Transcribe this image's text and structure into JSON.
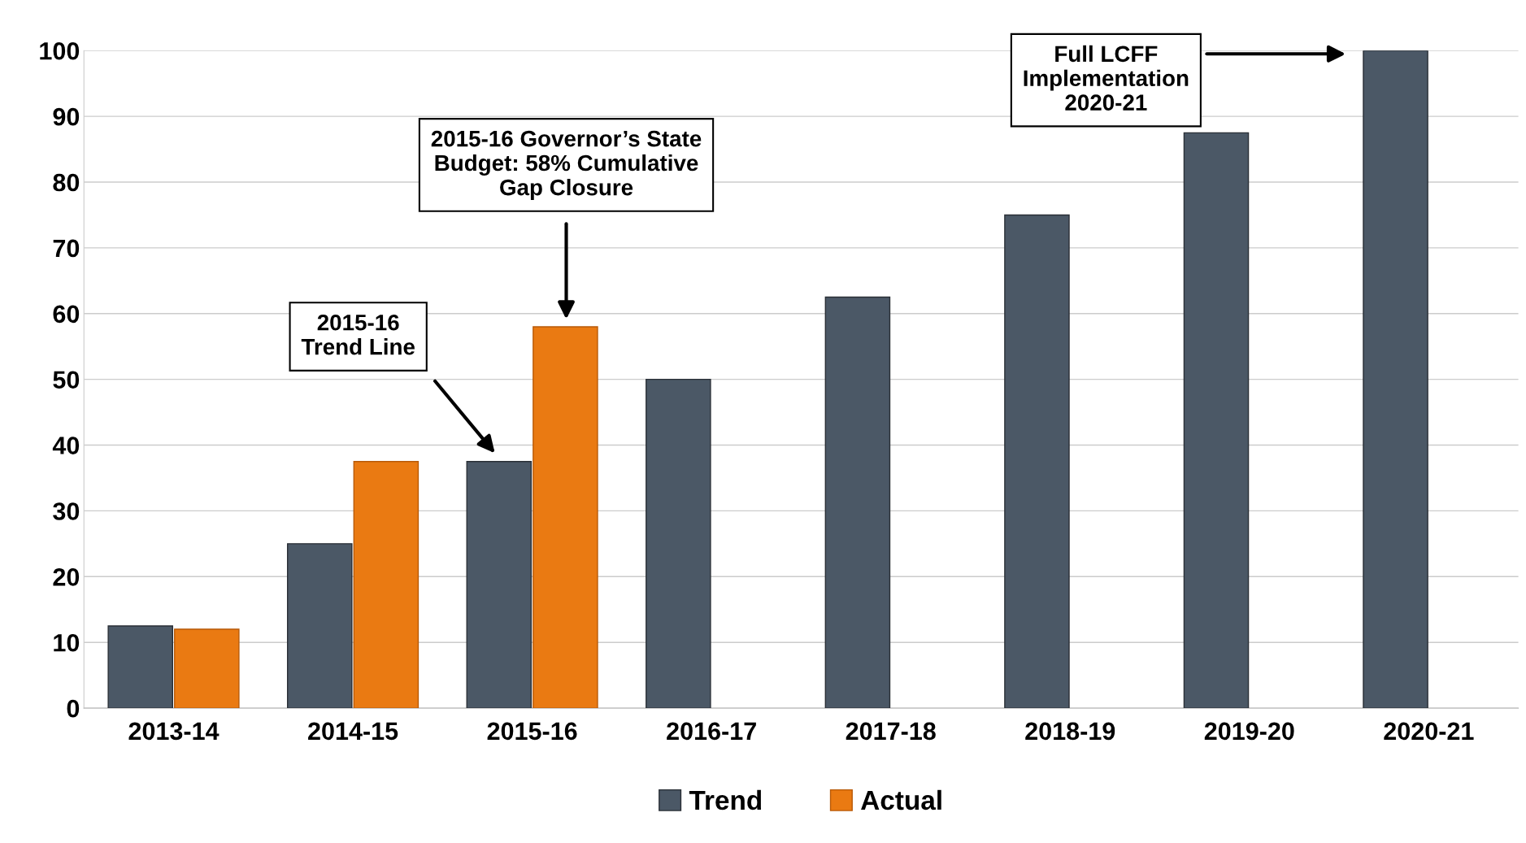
{
  "chart_data": {
    "type": "bar",
    "categories": [
      "2013-14",
      "2014-15",
      "2015-16",
      "2016-17",
      "2017-18",
      "2018-19",
      "2019-20",
      "2020-21"
    ],
    "series": [
      {
        "name": "Trend",
        "color": "#4b5866",
        "values": [
          12.5,
          25,
          37.5,
          50,
          62.5,
          75,
          87.5,
          100
        ]
      },
      {
        "name": "Actual",
        "color": "#ea7a12",
        "values": [
          12,
          37.5,
          58,
          null,
          null,
          null,
          null,
          null
        ]
      }
    ],
    "ylim": [
      0,
      100
    ],
    "yticks": [
      0,
      10,
      20,
      30,
      40,
      50,
      60,
      70,
      80,
      90,
      100
    ],
    "grid": "y",
    "legend": "bottom",
    "annotations": [
      "2015-16\nTrend Line",
      "2015-16 Governor’s State\nBudget: 58% Cumulative\nGap Closure",
      "Full LCFF\nImplementation\n2020-21"
    ]
  }
}
